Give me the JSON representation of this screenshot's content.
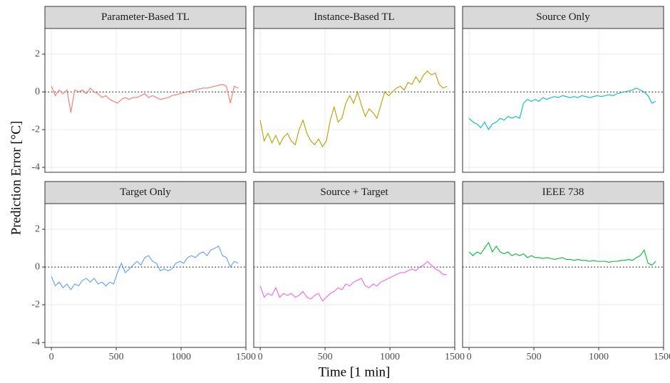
{
  "xlabel": "Time [1 min]",
  "ylabel": "Prediction Error [°C]",
  "chart_data": [
    {
      "type": "line",
      "title": "Parameter-Based TL",
      "color": "#F8766D",
      "x": [
        0,
        30,
        60,
        90,
        120,
        150,
        180,
        210,
        240,
        270,
        300,
        330,
        360,
        390,
        420,
        450,
        480,
        510,
        540,
        570,
        600,
        630,
        660,
        690,
        720,
        750,
        780,
        810,
        840,
        870,
        900,
        930,
        960,
        990,
        1020,
        1050,
        1080,
        1110,
        1140,
        1170,
        1200,
        1230,
        1260,
        1290,
        1320,
        1350,
        1380,
        1410,
        1440
      ],
      "values": [
        0.3,
        -0.2,
        0.1,
        -0.1,
        0.1,
        -1.1,
        0.1,
        0,
        0.1,
        -0.1,
        0.2,
        0,
        -0.1,
        -0.3,
        -0.2,
        -0.4,
        -0.5,
        -0.6,
        -0.4,
        -0.3,
        -0.4,
        -0.3,
        -0.3,
        -0.2,
        -0.1,
        -0.3,
        -0.2,
        -0.3,
        -0.4,
        -0.35,
        -0.3,
        -0.2,
        -0.15,
        -0.1,
        -0.05,
        0,
        0.05,
        0.1,
        0.15,
        0.2,
        0.2,
        0.25,
        0.3,
        0.35,
        0.4,
        0.3,
        -0.6,
        0.3,
        0.2
      ],
      "hline": 0,
      "xlim": [
        -50,
        1500
      ],
      "ylim": [
        -4.26,
        3.36
      ],
      "xticks": [
        0,
        500,
        1000,
        1500
      ],
      "yticks": [
        -4,
        -2,
        0,
        2
      ],
      "grid": true
    },
    {
      "type": "line",
      "title": "Instance-Based TL",
      "color": "#B79F00",
      "x": [
        0,
        30,
        60,
        90,
        120,
        150,
        180,
        210,
        240,
        270,
        300,
        330,
        360,
        390,
        420,
        450,
        480,
        510,
        540,
        570,
        600,
        630,
        660,
        690,
        720,
        750,
        780,
        810,
        840,
        870,
        900,
        930,
        960,
        990,
        1020,
        1050,
        1080,
        1110,
        1140,
        1170,
        1200,
        1230,
        1260,
        1290,
        1320,
        1350,
        1380,
        1410,
        1440
      ],
      "values": [
        -1.5,
        -2.6,
        -2.2,
        -2.7,
        -2.3,
        -2.8,
        -2.4,
        -2.2,
        -2.6,
        -2.8,
        -2,
        -1.5,
        -2.2,
        -2.6,
        -2.8,
        -2.5,
        -2.9,
        -2.6,
        -1.5,
        -0.8,
        -1.6,
        -1.4,
        -0.6,
        -0.2,
        -0.6,
        0,
        -0.7,
        -1.3,
        -0.9,
        -1.1,
        -1.4,
        -0.7,
        0,
        -0.2,
        0,
        0.2,
        0.3,
        0.1,
        0.5,
        0.4,
        0.8,
        0.5,
        0.9,
        1.1,
        0.9,
        1.0,
        0.4,
        0.2,
        0.3
      ],
      "hline": 0,
      "xlim": [
        -50,
        1500
      ],
      "ylim": [
        -4.26,
        3.36
      ],
      "xticks": [
        0,
        500,
        1000,
        1500
      ],
      "yticks": [
        -4,
        -2,
        0,
        2
      ],
      "grid": true
    },
    {
      "type": "line",
      "title": "Source Only",
      "color": "#00BFC4",
      "x": [
        0,
        30,
        60,
        90,
        120,
        150,
        180,
        210,
        240,
        270,
        300,
        330,
        360,
        390,
        420,
        450,
        480,
        510,
        540,
        570,
        600,
        630,
        660,
        690,
        720,
        750,
        780,
        810,
        840,
        870,
        900,
        930,
        960,
        990,
        1020,
        1050,
        1080,
        1110,
        1140,
        1170,
        1200,
        1230,
        1260,
        1290,
        1320,
        1350,
        1380,
        1410,
        1440
      ],
      "values": [
        -1.4,
        -1.6,
        -1.7,
        -1.9,
        -1.6,
        -2.0,
        -1.7,
        -1.6,
        -1.4,
        -1.5,
        -1.3,
        -1.4,
        -1.3,
        -1.4,
        -0.6,
        -0.4,
        -0.5,
        -0.4,
        -0.5,
        -0.3,
        -0.4,
        -0.3,
        -0.25,
        -0.3,
        -0.2,
        -0.25,
        -0.3,
        -0.25,
        -0.3,
        -0.2,
        -0.25,
        -0.3,
        -0.25,
        -0.2,
        -0.25,
        -0.2,
        -0.15,
        -0.2,
        -0.1,
        -0.05,
        0,
        0.05,
        0.1,
        0.2,
        0.1,
        0,
        -0.2,
        -0.6,
        -0.5
      ],
      "hline": 0,
      "xlim": [
        -50,
        1500
      ],
      "ylim": [
        -4.26,
        3.36
      ],
      "xticks": [
        0,
        500,
        1000,
        1500
      ],
      "yticks": [
        -4,
        -2,
        0,
        2
      ],
      "grid": true
    },
    {
      "type": "line",
      "title": "Target Only",
      "color": "#619CFF",
      "x": [
        0,
        30,
        60,
        90,
        120,
        150,
        180,
        210,
        240,
        270,
        300,
        330,
        360,
        390,
        420,
        450,
        480,
        510,
        540,
        570,
        600,
        630,
        660,
        690,
        720,
        750,
        780,
        810,
        840,
        870,
        900,
        930,
        960,
        990,
        1020,
        1050,
        1080,
        1110,
        1140,
        1170,
        1200,
        1230,
        1260,
        1290,
        1320,
        1350,
        1380,
        1410,
        1440
      ],
      "values": [
        -0.5,
        -1.0,
        -0.8,
        -1.1,
        -0.9,
        -1.2,
        -0.9,
        -1.0,
        -0.7,
        -0.6,
        -0.8,
        -0.6,
        -0.9,
        -0.8,
        -1.0,
        -0.8,
        -0.9,
        -0.3,
        0.2,
        -0.3,
        -0.1,
        0.1,
        0.3,
        0.1,
        0.5,
        0.6,
        0.3,
        0.2,
        -0.2,
        -0.1,
        -0.2,
        -0.1,
        0.2,
        0.3,
        0.2,
        0.5,
        0.6,
        0.5,
        0.7,
        0.8,
        0.6,
        0.9,
        1.0,
        1.1,
        0.6,
        0.5,
        0,
        0.3,
        0.2
      ],
      "hline": 0,
      "xlim": [
        -50,
        1500
      ],
      "ylim": [
        -4.26,
        3.36
      ],
      "xticks": [
        0,
        500,
        1000,
        1500
      ],
      "yticks": [
        -4,
        -2,
        0,
        2
      ],
      "grid": true
    },
    {
      "type": "line",
      "title": "Source + Target",
      "color": "#F564E3",
      "x": [
        0,
        30,
        60,
        90,
        120,
        150,
        180,
        210,
        240,
        270,
        300,
        330,
        360,
        390,
        420,
        450,
        480,
        510,
        540,
        570,
        600,
        630,
        660,
        690,
        720,
        750,
        780,
        810,
        840,
        870,
        900,
        930,
        960,
        990,
        1020,
        1050,
        1080,
        1110,
        1140,
        1170,
        1200,
        1230,
        1260,
        1290,
        1320,
        1350,
        1380,
        1410,
        1440
      ],
      "values": [
        -1.0,
        -1.6,
        -1.4,
        -1.5,
        -1.1,
        -1.6,
        -1.4,
        -1.5,
        -1.4,
        -1.6,
        -1.5,
        -1.3,
        -1.6,
        -1.7,
        -1.5,
        -1.4,
        -1.8,
        -1.6,
        -1.4,
        -1.3,
        -1.1,
        -1.2,
        -0.9,
        -1.0,
        -0.8,
        -0.7,
        -0.6,
        -1.0,
        -1.1,
        -0.9,
        -1.0,
        -0.8,
        -0.7,
        -0.6,
        -0.5,
        -0.4,
        -0.3,
        -0.3,
        -0.2,
        -0.1,
        -0.2,
        0,
        0.1,
        0.3,
        0.1,
        -0.1,
        -0.2,
        -0.4,
        -0.4
      ],
      "hline": 0,
      "xlim": [
        -50,
        1500
      ],
      "ylim": [
        -4.26,
        3.36
      ],
      "xticks": [
        0,
        500,
        1000,
        1500
      ],
      "yticks": [
        -4,
        -2,
        0,
        2
      ],
      "grid": true
    },
    {
      "type": "line",
      "title": "IEEE 738",
      "color": "#00BA38",
      "x": [
        0,
        30,
        60,
        90,
        120,
        150,
        180,
        210,
        240,
        270,
        300,
        330,
        360,
        390,
        420,
        450,
        480,
        510,
        540,
        570,
        600,
        630,
        660,
        690,
        720,
        750,
        780,
        810,
        840,
        870,
        900,
        930,
        960,
        990,
        1020,
        1050,
        1080,
        1110,
        1140,
        1170,
        1200,
        1230,
        1260,
        1290,
        1320,
        1350,
        1380,
        1410,
        1440
      ],
      "values": [
        0.8,
        0.6,
        0.8,
        0.7,
        1.0,
        1.3,
        0.8,
        1.1,
        0.8,
        0.7,
        0.8,
        0.6,
        0.7,
        0.6,
        0.7,
        0.5,
        0.6,
        0.5,
        0.5,
        0.45,
        0.5,
        0.45,
        0.4,
        0.45,
        0.5,
        0.4,
        0.4,
        0.35,
        0.4,
        0.35,
        0.35,
        0.3,
        0.35,
        0.3,
        0.3,
        0.3,
        0.25,
        0.3,
        0.3,
        0.35,
        0.35,
        0.4,
        0.35,
        0.5,
        0.6,
        0.9,
        0.2,
        0.1,
        0.3
      ],
      "hline": 0,
      "xlim": [
        -50,
        1500
      ],
      "ylim": [
        -4.26,
        3.36
      ],
      "xticks": [
        0,
        500,
        1000,
        1500
      ],
      "yticks": [
        -4,
        -2,
        0,
        2
      ],
      "grid": true
    }
  ]
}
